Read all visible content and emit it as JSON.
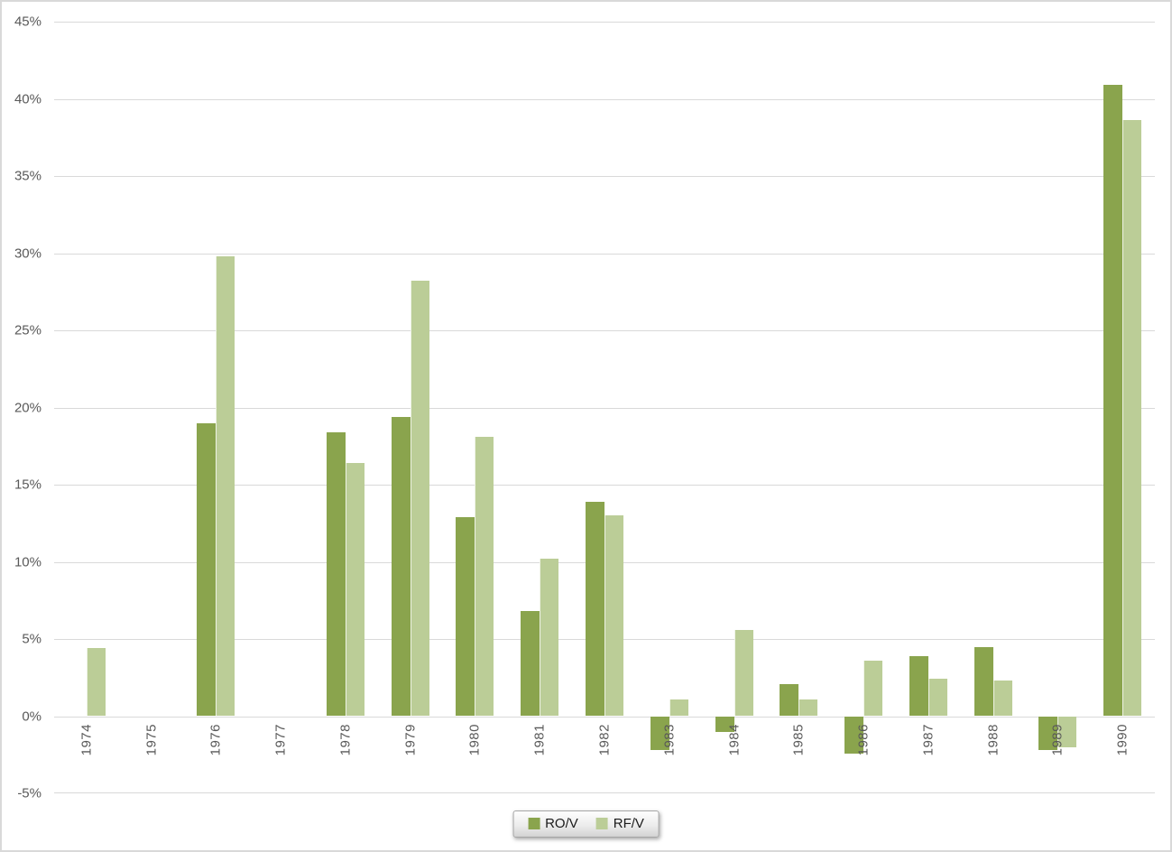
{
  "chart_data": {
    "type": "bar",
    "title": "",
    "xlabel": "",
    "ylabel": "",
    "categories": [
      "1974",
      "1975",
      "1976",
      "1977",
      "1978",
      "1979",
      "1980",
      "1981",
      "1982",
      "1983",
      "1984",
      "1985",
      "1986",
      "1987",
      "1988",
      "1989",
      "1990"
    ],
    "series": [
      {
        "name": "RO/V",
        "color": "#8AA44D",
        "values": [
          0,
          0,
          19.0,
          0,
          18.4,
          19.4,
          12.9,
          6.8,
          13.9,
          -2.2,
          -1.0,
          2.1,
          -2.4,
          3.9,
          4.5,
          -2.2,
          40.9
        ]
      },
      {
        "name": "RF/V",
        "color": "#BBCD97",
        "values": [
          4.4,
          0,
          29.8,
          0,
          16.4,
          28.2,
          18.1,
          10.2,
          13.0,
          1.1,
          5.6,
          1.1,
          3.6,
          2.4,
          2.3,
          -2.0,
          38.6
        ]
      }
    ],
    "ylim": [
      -5,
      45
    ],
    "ytick_step": 5,
    "yticks": [
      {
        "value": 45,
        "label": "45%"
      },
      {
        "value": 40,
        "label": "40%"
      },
      {
        "value": 35,
        "label": "35%"
      },
      {
        "value": 30,
        "label": "30%"
      },
      {
        "value": 25,
        "label": "25%"
      },
      {
        "value": 20,
        "label": "20%"
      },
      {
        "value": 15,
        "label": "15%"
      },
      {
        "value": 10,
        "label": "10%"
      },
      {
        "value": 5,
        "label": "5%"
      },
      {
        "value": 0,
        "label": "0%"
      },
      {
        "value": -5,
        "label": "-5%"
      }
    ],
    "grid": true,
    "legend_position": "bottom-center",
    "colors": {
      "gridline": "#D9D9D9",
      "axis_text": "#595959",
      "background": "#FFFFFF",
      "frame_border": "#D9D9D9",
      "legend_border": "#A6A6A6",
      "legend_text": "#1A1A1A"
    }
  }
}
